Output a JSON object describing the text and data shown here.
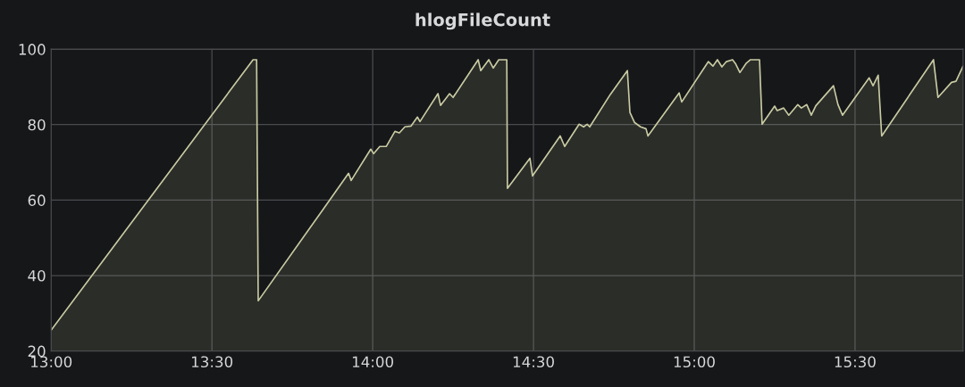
{
  "chart_data": {
    "type": "area",
    "title": "hlogFileCount",
    "x": [
      13.0,
      13.628,
      13.639,
      13.644,
      13.842,
      13.925,
      13.933,
      13.994,
      14.003,
      14.022,
      14.042,
      14.069,
      14.083,
      14.1,
      14.119,
      14.139,
      14.147,
      14.203,
      14.211,
      14.239,
      14.25,
      14.328,
      14.336,
      14.361,
      14.375,
      14.392,
      14.417,
      14.419,
      14.489,
      14.497,
      14.583,
      14.597,
      14.642,
      14.656,
      14.667,
      14.675,
      14.739,
      14.792,
      14.8,
      14.814,
      14.833,
      14.85,
      14.856,
      14.953,
      14.961,
      15.044,
      15.058,
      15.072,
      15.086,
      15.1,
      15.119,
      15.128,
      15.142,
      15.161,
      15.175,
      15.203,
      15.211,
      15.25,
      15.258,
      15.278,
      15.294,
      15.322,
      15.333,
      15.35,
      15.364,
      15.378,
      15.433,
      15.447,
      15.461,
      15.544,
      15.556,
      15.572,
      15.583,
      15.744,
      15.758,
      15.8,
      15.814,
      15.836
    ],
    "series": [
      {
        "color": "#c8caa2",
        "values": [
          25.5,
          97.2,
          97.2,
          33.3,
          57.1,
          67.1,
          65.2,
          73.5,
          72.3,
          74.2,
          74.2,
          78.2,
          77.8,
          79.4,
          79.6,
          82.0,
          80.8,
          88.2,
          85.1,
          88.2,
          87.2,
          97.2,
          94.3,
          97.2,
          95.0,
          97.2,
          97.2,
          63.1,
          71.1,
          66.4,
          77.0,
          74.2,
          80.1,
          79.4,
          80.1,
          79.4,
          88.0,
          94.3,
          83.2,
          80.6,
          79.4,
          78.9,
          77.0,
          88.4,
          86.0,
          96.7,
          95.5,
          97.2,
          95.3,
          96.7,
          97.2,
          96.2,
          93.8,
          96.2,
          97.2,
          97.2,
          80.1,
          84.9,
          83.7,
          84.4,
          82.5,
          85.3,
          84.4,
          85.3,
          82.5,
          85.0,
          90.3,
          85.3,
          82.5,
          92.4,
          90.3,
          93.1,
          77.0,
          97.2,
          87.2,
          91.2,
          91.5,
          95.5
        ]
      }
    ],
    "xlim": [
      13.0,
      15.836
    ],
    "xticks": [
      {
        "value": 13.0,
        "label": "13:00"
      },
      {
        "value": 13.5,
        "label": "13:30"
      },
      {
        "value": 14.0,
        "label": "14:00"
      },
      {
        "value": 14.5,
        "label": "14:30"
      },
      {
        "value": 15.0,
        "label": "15:00"
      },
      {
        "value": 15.5,
        "label": "15:30"
      }
    ],
    "ylim": [
      20,
      100
    ],
    "yticks": [
      20,
      40,
      60,
      80,
      100
    ],
    "grid": true
  }
}
